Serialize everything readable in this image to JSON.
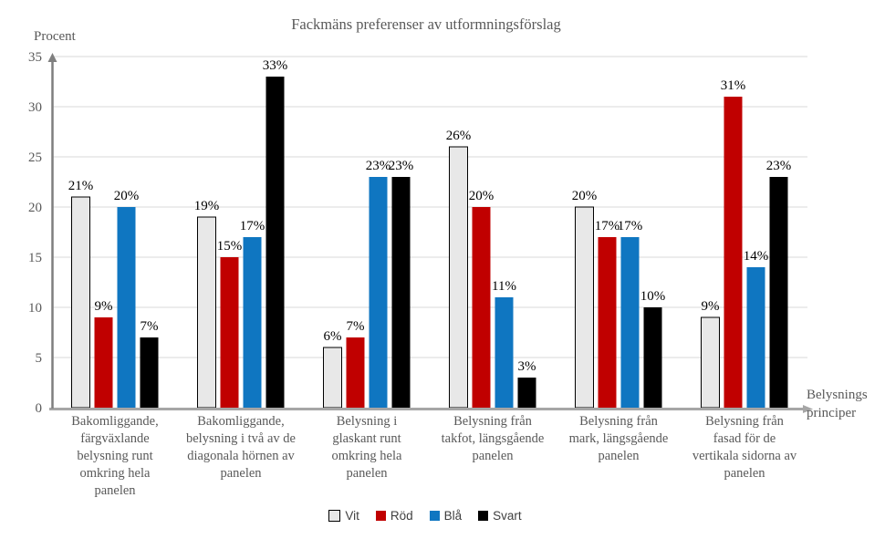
{
  "chart_data": {
    "type": "bar",
    "title": "Fackmäns preferenser av utformningsförslag",
    "ylabel": "Procent",
    "xlabel": "Belysnings\nprinciper",
    "ylim": [
      0,
      35
    ],
    "yticks": [
      0,
      5,
      10,
      15,
      20,
      25,
      30,
      35
    ],
    "grid": true,
    "legend_position": "bottom",
    "value_label_suffix": "%",
    "categories": [
      "Bakomliggande,\nfärgväxlande\nbelysning runt\nomkring hela\npanelen",
      "Bakomliggande,\nbelysning i två av de\ndiagonala hörnen av\npanelen",
      "Belysning i\nglaskant runt\nomkring hela\npanelen",
      "Belysning från\ntakfot, längsgående\npanelen",
      "Belysning från\nmark, längsgående\npanelen",
      "Belysning från\nfasad för de\nvertikala sidorna av\npanelen"
    ],
    "series": [
      {
        "name": "Vit",
        "color": "#e8e8e8",
        "border": "#000000",
        "values": [
          21,
          19,
          6,
          26,
          20,
          9
        ]
      },
      {
        "name": "Röd",
        "color": "#c00000",
        "values": [
          9,
          15,
          7,
          20,
          17,
          31
        ]
      },
      {
        "name": "Blå",
        "color": "#0f76c1",
        "values": [
          20,
          17,
          23,
          11,
          17,
          14
        ]
      },
      {
        "name": "Svart",
        "color": "#000000",
        "values": [
          7,
          33,
          23,
          3,
          10,
          23
        ]
      }
    ],
    "colors": {
      "gridline": "#d9d9d9",
      "y_axis": "#7f7f7f",
      "x_axis": "#a6a6a6",
      "tick_label": "#595959",
      "value_label": "#000000",
      "title": "#595959"
    }
  }
}
